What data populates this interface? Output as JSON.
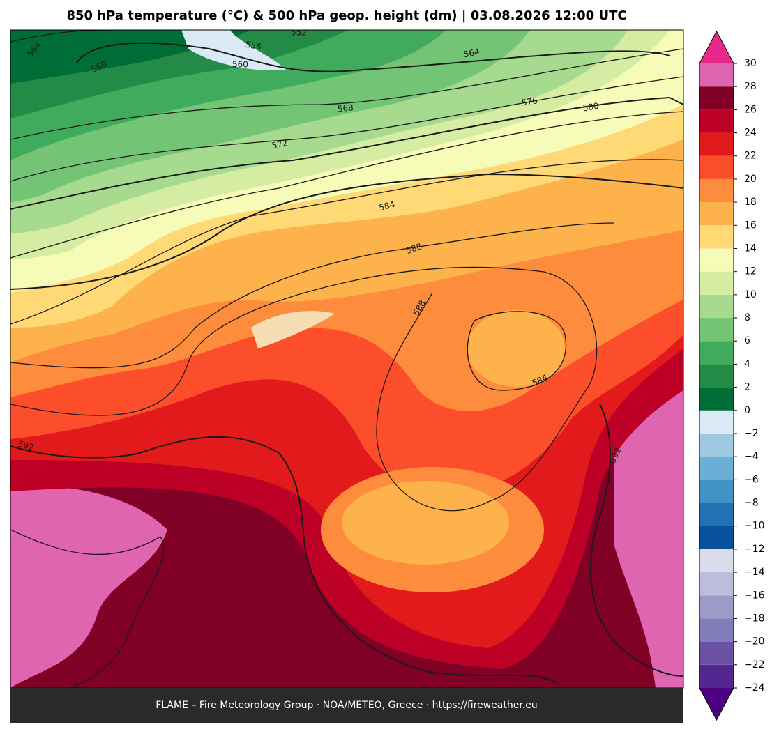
{
  "title": "850 hPa temperature (°C) & 500 hPa geop. height (dm)  |  03.08.2026 12:00 UTC",
  "footer": "FLAME – Fire Meteorology Group · NOA/METEO, Greece · https://fireweather.eu",
  "contour_labels": [
    564,
    560,
    556,
    552,
    560,
    564,
    568,
    572,
    576,
    580,
    584,
    588,
    588,
    584,
    592,
    592
  ],
  "colorbar": {
    "range": [
      -24,
      30
    ],
    "ticks": [
      {
        "value": -24,
        "label": "−24"
      },
      {
        "value": -22,
        "label": "−22"
      },
      {
        "value": -20,
        "label": "−20"
      },
      {
        "value": -18,
        "label": "−18"
      },
      {
        "value": -16,
        "label": "−16"
      },
      {
        "value": -14,
        "label": "−14"
      },
      {
        "value": -12,
        "label": "−12"
      },
      {
        "value": -10,
        "label": "−10"
      },
      {
        "value": -8,
        "label": "−8"
      },
      {
        "value": -6,
        "label": "−6"
      },
      {
        "value": -4,
        "label": "−4"
      },
      {
        "value": -2,
        "label": "−2"
      },
      0,
      2,
      4,
      6,
      8,
      10,
      12,
      14,
      16,
      18,
      20,
      22,
      24,
      26,
      28,
      30
    ],
    "colors": [
      "#54278f",
      "#6a51a3",
      "#807dba",
      "#9e9ac8",
      "#bcbddc",
      "#dadaeb",
      "#08519c",
      "#2171b5",
      "#4292c6",
      "#6baed6",
      "#9ecae1",
      "#dbe9f6",
      "#006d36",
      "#238b45",
      "#41ab5d",
      "#74c476",
      "#a6da8f",
      "#d4eda3",
      "#f7fbb8",
      "#fed976",
      "#feb24c",
      "#fd8d3c",
      "#fc4e2a",
      "#e31a1c",
      "#bd0026",
      "#800026",
      "#df65b0"
    ],
    "under_color": "#4a0080",
    "over_color": "#e7298a"
  }
}
